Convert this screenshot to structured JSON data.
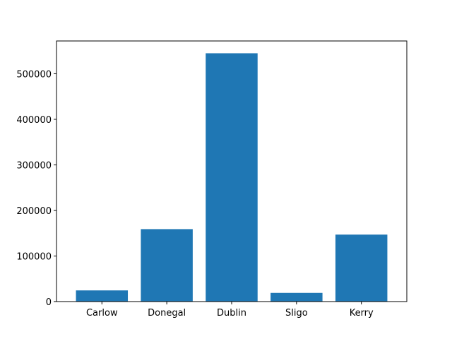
{
  "chart_data": {
    "type": "bar",
    "categories": [
      "Carlow",
      "Donegal",
      "Dublin",
      "Sligo",
      "Kerry"
    ],
    "values": [
      24500,
      159000,
      545000,
      19000,
      147000
    ],
    "ylim": [
      0,
      572000
    ],
    "yticks": [
      0,
      100000,
      200000,
      300000,
      400000,
      500000
    ],
    "ytick_labels": [
      "0",
      "100000",
      "200000",
      "300000",
      "400000",
      "500000"
    ],
    "title": "",
    "xlabel": "",
    "ylabel": "",
    "grid": false,
    "bar_color": "#1f77b4"
  }
}
